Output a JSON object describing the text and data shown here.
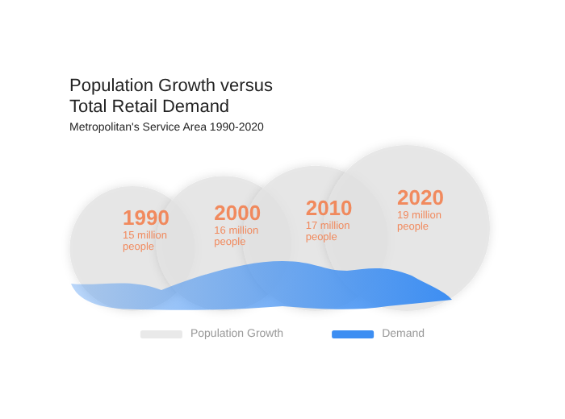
{
  "chart_data": {
    "type": "other",
    "title": "Population Growth versus\nTotal Retail Demand",
    "subtitle": "Metropolitan's Service Area 1990-2020",
    "categories": [
      "1990",
      "2000",
      "2010",
      "2020"
    ],
    "legend": "bottom",
    "series": [
      {
        "name": "Population Growth",
        "color": "#e4e4e4",
        "values": [
          15,
          16,
          17,
          19
        ],
        "value_labels": [
          "15 million people",
          "16 million people",
          "17 million people",
          "19 million people"
        ]
      },
      {
        "name": "Demand",
        "color": "#3d8ef2",
        "values": [
          null,
          null,
          null,
          null
        ]
      }
    ]
  }
}
